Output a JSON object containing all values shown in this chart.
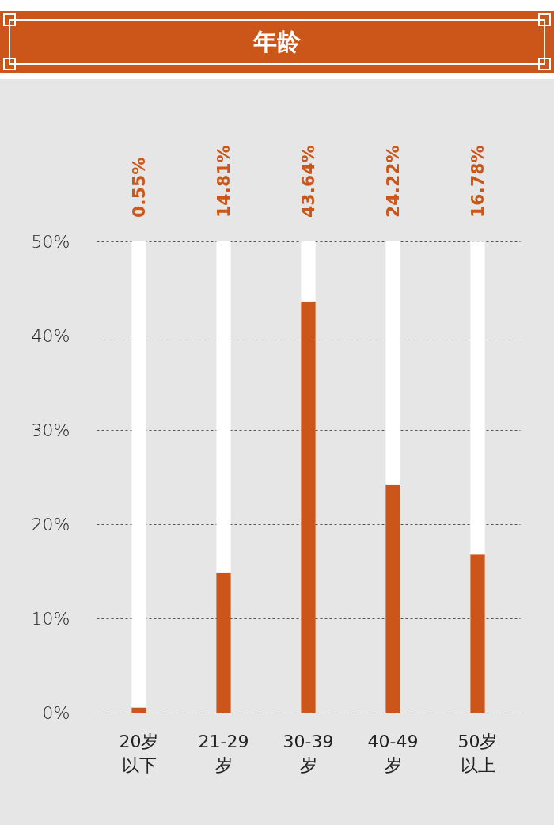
{
  "chart_data": {
    "type": "bar",
    "title": "年龄",
    "categories": [
      "20岁以下",
      "21-29岁",
      "30-39岁",
      "40-49岁",
      "50岁以上"
    ],
    "stacked": true,
    "series": [
      {
        "color": "#cc5619",
        "values": [
          0.55,
          14.81,
          43.64,
          24.22,
          16.78
        ],
        "value_labels": [
          "0.55%",
          "14.81%",
          "43.64%",
          "24.22%",
          "16.78%"
        ]
      },
      {
        "color": "#ffffff",
        "values": [
          49.5,
          35.2,
          6.4,
          25.8,
          33.2
        ]
      }
    ],
    "ylim": [
      0,
      50
    ],
    "yticks": [
      {
        "value": 0,
        "label": "0%"
      },
      {
        "value": 10,
        "label": "10%"
      },
      {
        "value": 20,
        "label": "20%"
      },
      {
        "value": 30,
        "label": "30%"
      },
      {
        "value": 40,
        "label": "40%"
      },
      {
        "value": 50,
        "label": "50%"
      }
    ],
    "grid": "y"
  }
}
